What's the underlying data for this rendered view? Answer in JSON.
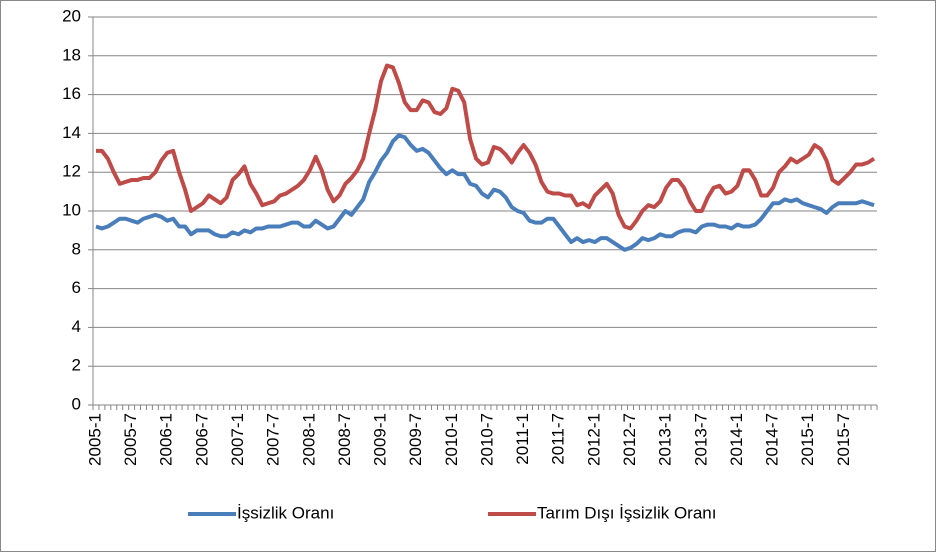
{
  "chart_data": {
    "type": "line",
    "categories": [
      "2005-1",
      null,
      null,
      null,
      null,
      null,
      "2005-7",
      null,
      null,
      null,
      null,
      null,
      "2006-1",
      null,
      null,
      null,
      null,
      null,
      "2006-7",
      null,
      null,
      null,
      null,
      null,
      "2007-1",
      null,
      null,
      null,
      null,
      null,
      "2007-7",
      null,
      null,
      null,
      null,
      null,
      "2008-1",
      null,
      null,
      null,
      null,
      null,
      "2008-7",
      null,
      null,
      null,
      null,
      null,
      "2009-1",
      null,
      null,
      null,
      null,
      null,
      "2009-7",
      null,
      null,
      null,
      null,
      null,
      "2010-1",
      null,
      null,
      null,
      null,
      null,
      "2010-7",
      null,
      null,
      null,
      null,
      null,
      "2011-1",
      null,
      null,
      null,
      null,
      null,
      "2011-7",
      null,
      null,
      null,
      null,
      null,
      "2012-1",
      null,
      null,
      null,
      null,
      null,
      "2012-7",
      null,
      null,
      null,
      null,
      null,
      "2013-1",
      null,
      null,
      null,
      null,
      null,
      "2013-7",
      null,
      null,
      null,
      null,
      null,
      "2014-1",
      null,
      null,
      null,
      null,
      null,
      "2014-7",
      null,
      null,
      null,
      null,
      null,
      "2015-1",
      null,
      null,
      null,
      null,
      null,
      "2015-7",
      null,
      null,
      null,
      null,
      null
    ],
    "series": [
      {
        "name": "İşsizlik Oranı",
        "color": "#4a7ebb",
        "values": [
          9.2,
          9.1,
          9.2,
          9.4,
          9.6,
          9.6,
          9.5,
          9.4,
          9.6,
          9.7,
          9.8,
          9.7,
          9.5,
          9.6,
          9.2,
          9.2,
          8.8,
          9.0,
          9.0,
          9.0,
          8.8,
          8.7,
          8.7,
          8.9,
          8.8,
          9.0,
          8.9,
          9.1,
          9.1,
          9.2,
          9.2,
          9.2,
          9.3,
          9.4,
          9.4,
          9.2,
          9.2,
          9.5,
          9.3,
          9.1,
          9.2,
          9.6,
          10.0,
          9.8,
          10.2,
          10.6,
          11.5,
          12.0,
          12.6,
          13.0,
          13.6,
          13.9,
          13.8,
          13.4,
          13.1,
          13.2,
          13.0,
          12.6,
          12.2,
          11.9,
          12.1,
          11.9,
          11.9,
          11.4,
          11.3,
          10.9,
          10.7,
          11.1,
          11.0,
          10.7,
          10.2,
          10.0,
          9.9,
          9.5,
          9.4,
          9.4,
          9.6,
          9.6,
          9.2,
          8.8,
          8.4,
          8.6,
          8.4,
          8.5,
          8.4,
          8.6,
          8.6,
          8.4,
          8.2,
          8.0,
          8.1,
          8.3,
          8.6,
          8.5,
          8.6,
          8.8,
          8.7,
          8.7,
          8.9,
          9.0,
          9.0,
          8.9,
          9.2,
          9.3,
          9.3,
          9.2,
          9.2,
          9.1,
          9.3,
          9.2,
          9.2,
          9.3,
          9.6,
          10.0,
          10.4,
          10.4,
          10.6,
          10.5,
          10.6,
          10.4,
          10.3,
          10.2,
          10.1,
          9.9,
          10.2,
          10.4,
          10.4,
          10.4,
          10.4,
          10.5,
          10.4,
          10.3
        ]
      },
      {
        "name": "Tarım Dışı İşsizlik Oranı",
        "color": "#be4b48",
        "values": [
          13.1,
          13.1,
          12.7,
          12.0,
          11.4,
          11.5,
          11.6,
          11.6,
          11.7,
          11.7,
          12.0,
          12.6,
          13.0,
          13.1,
          12.0,
          11.1,
          10.0,
          10.2,
          10.4,
          10.8,
          10.6,
          10.4,
          10.7,
          11.6,
          11.9,
          12.3,
          11.4,
          10.9,
          10.3,
          10.4,
          10.5,
          10.8,
          10.9,
          11.1,
          11.3,
          11.6,
          12.1,
          12.8,
          12.1,
          11.1,
          10.5,
          10.8,
          11.4,
          11.7,
          12.1,
          12.7,
          14.0,
          15.2,
          16.7,
          17.5,
          17.4,
          16.6,
          15.6,
          15.2,
          15.2,
          15.7,
          15.6,
          15.1,
          15.0,
          15.3,
          16.3,
          16.2,
          15.6,
          13.7,
          12.7,
          12.4,
          12.5,
          13.3,
          13.2,
          12.9,
          12.5,
          13.0,
          13.4,
          13.0,
          12.4,
          11.5,
          11.0,
          10.9,
          10.9,
          10.8,
          10.8,
          10.3,
          10.4,
          10.2,
          10.8,
          11.1,
          11.4,
          10.9,
          9.8,
          9.2,
          9.1,
          9.5,
          10.0,
          10.3,
          10.2,
          10.5,
          11.2,
          11.6,
          11.6,
          11.2,
          10.5,
          10.0,
          10.0,
          10.7,
          11.2,
          11.3,
          10.9,
          11.0,
          11.3,
          12.1,
          12.1,
          11.6,
          10.8,
          10.8,
          11.2,
          12.0,
          12.3,
          12.7,
          12.5,
          12.7,
          12.9,
          13.4,
          13.2,
          12.6,
          11.6,
          11.4,
          11.7,
          12.0,
          12.4,
          12.4,
          12.5,
          12.7
        ]
      }
    ],
    "ylim": [
      0,
      20
    ],
    "yticks": [
      0,
      2,
      4,
      6,
      8,
      10,
      12,
      14,
      16,
      18,
      20
    ],
    "grid": true,
    "legend": "bottom"
  }
}
